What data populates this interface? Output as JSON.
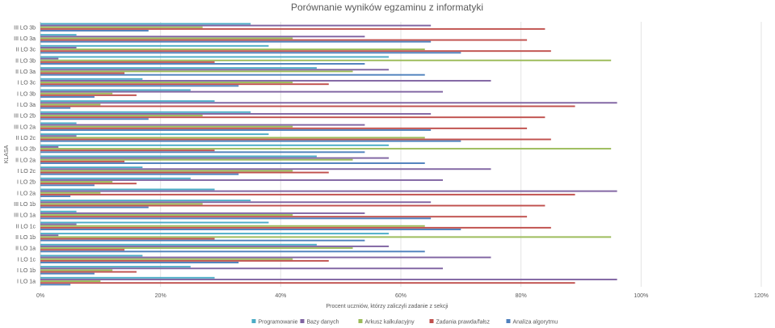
{
  "chart_data": {
    "type": "bar",
    "orientation": "horizontal",
    "title": "Porównanie wyników egzaminu z informatyki",
    "xlabel": "Procent uczniów, którzy zaliczyli zadanie z sekcji",
    "ylabel": "KLASA",
    "xlim": [
      0,
      120
    ],
    "xticks": [
      "0%",
      "20%",
      "40%",
      "60%",
      "80%",
      "100%",
      "120%"
    ],
    "grid": true,
    "legend_position": "bottom",
    "categories": [
      "I LO 1a",
      "I LO 1b",
      "I LO 1c",
      "II LO 1a",
      "II LO 1b",
      "II LO 1c",
      "III LO 1a",
      "III LO 1b",
      "I LO 2a",
      "I LO 2b",
      "I LO 2c",
      "II LO 2a",
      "II LO 2b",
      "II LO 2c",
      "III LO 2a",
      "III LO 2b",
      "I LO 3a",
      "I LO 3b",
      "I LO 3c",
      "II LO 3a",
      "II LO 3b",
      "II LO 3c",
      "III LO 3a",
      "III LO 3b"
    ],
    "series": [
      {
        "name": "Programowanie",
        "color": "#4bacc6",
        "values": [
          29,
          25,
          17,
          46,
          58,
          38,
          6,
          35,
          29,
          25,
          17,
          46,
          58,
          38,
          6,
          35,
          29,
          25,
          17,
          46,
          58,
          38,
          6,
          35
        ]
      },
      {
        "name": "Bazy danych",
        "color": "#8064a2",
        "values": [
          96,
          67,
          75,
          58,
          3,
          6,
          54,
          65,
          96,
          67,
          75,
          58,
          3,
          6,
          54,
          65,
          96,
          67,
          75,
          58,
          3,
          6,
          54,
          65
        ]
      },
      {
        "name": "Arkusz kalkulacyjny",
        "color": "#9bbb59",
        "values": [
          10,
          12,
          42,
          52,
          95,
          64,
          42,
          27,
          10,
          12,
          42,
          52,
          95,
          64,
          42,
          27,
          10,
          12,
          42,
          52,
          95,
          64,
          42,
          27
        ]
      },
      {
        "name": "Zadania prawda/fałsz",
        "color": "#c0504d",
        "values": [
          89,
          16,
          48,
          14,
          29,
          85,
          81,
          84,
          89,
          16,
          48,
          14,
          29,
          85,
          81,
          84,
          89,
          16,
          48,
          14,
          29,
          85,
          81,
          84
        ]
      },
      {
        "name": "Analiza algorytmu",
        "color": "#4f81bd",
        "values": [
          5,
          9,
          33,
          64,
          54,
          70,
          65,
          18,
          5,
          9,
          33,
          64,
          54,
          70,
          65,
          18,
          5,
          9,
          33,
          64,
          54,
          70,
          65,
          18
        ]
      }
    ]
  }
}
